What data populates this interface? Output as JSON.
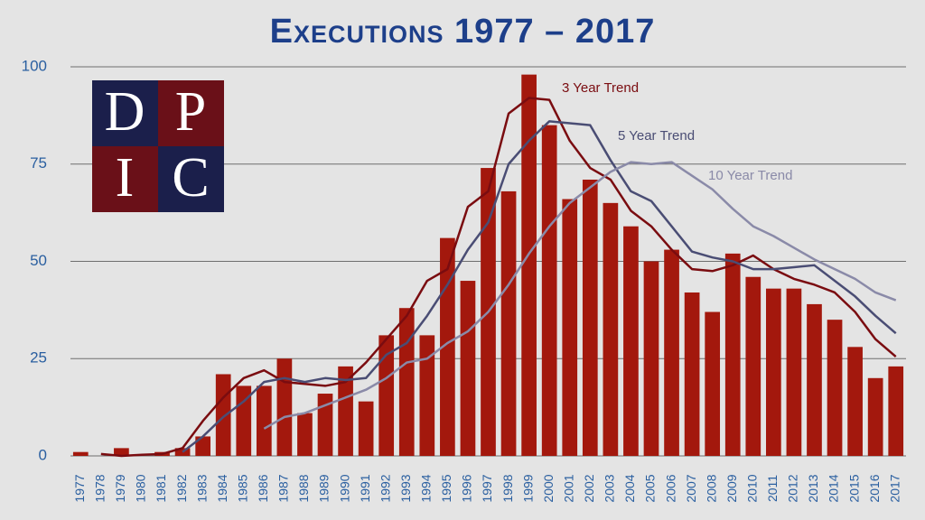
{
  "chart_data": {
    "type": "bar",
    "title": "Executions 1977 – 2017",
    "logo": [
      "D",
      "P",
      "I",
      "C"
    ],
    "categories": [
      "1977",
      "1978",
      "1979",
      "1980",
      "1981",
      "1982",
      "1983",
      "1984",
      "1985",
      "1986",
      "1987",
      "1988",
      "1989",
      "1990",
      "1991",
      "1992",
      "1993",
      "1994",
      "1995",
      "1996",
      "1997",
      "1998",
      "1999",
      "2000",
      "2001",
      "2002",
      "2003",
      "2004",
      "2005",
      "2006",
      "2007",
      "2008",
      "2009",
      "2010",
      "2011",
      "2012",
      "2013",
      "2014",
      "2015",
      "2016",
      "2017"
    ],
    "values": [
      1,
      0,
      2,
      0,
      1,
      2,
      5,
      21,
      18,
      18,
      25,
      11,
      16,
      23,
      14,
      31,
      38,
      31,
      56,
      45,
      74,
      68,
      98,
      85,
      66,
      71,
      65,
      59,
      50,
      53,
      42,
      37,
      52,
      46,
      43,
      43,
      39,
      35,
      28,
      20,
      23
    ],
    "color": "#a3180d",
    "series": [
      {
        "name": "3 Year Trend",
        "color": "#7a0c10",
        "values": [
          null,
          0.5,
          0,
          0.3,
          0.5,
          2,
          9,
          15,
          20,
          22,
          19,
          18.5,
          18,
          19,
          24,
          30,
          36,
          45,
          48,
          64,
          68,
          88,
          92,
          91.5,
          81,
          74,
          71,
          63,
          59,
          53,
          48,
          47.5,
          49,
          51.5,
          48,
          45.5,
          44,
          42,
          37,
          30,
          25.5
        ]
      },
      {
        "name": "5 Year Trend",
        "color": "#4a4d74",
        "values": [
          null,
          null,
          null,
          null,
          null,
          1,
          5,
          10,
          14,
          19,
          20,
          19,
          20,
          19.5,
          20,
          26,
          29,
          36,
          44,
          53,
          60,
          75,
          81,
          86,
          85.5,
          85,
          76,
          68,
          65.5,
          59,
          52.5,
          51,
          50,
          48,
          48,
          48.5,
          49,
          45,
          41,
          36,
          31.5
        ]
      },
      {
        "name": "10 Year Trend",
        "color": "#8a8aa8",
        "values": [
          null,
          null,
          null,
          null,
          null,
          null,
          null,
          null,
          null,
          7,
          10,
          11,
          13,
          15,
          17,
          20,
          24,
          25,
          29,
          32,
          37,
          44,
          52,
          59,
          65,
          69,
          73,
          75.5,
          75,
          75.5,
          72,
          68.5,
          63.5,
          59,
          56.5,
          53.5,
          50.5,
          48,
          45.5,
          42,
          40
        ]
      }
    ],
    "ylim": [
      0,
      100
    ],
    "yticks": [
      0,
      25,
      50,
      75,
      100
    ],
    "grid": true
  }
}
